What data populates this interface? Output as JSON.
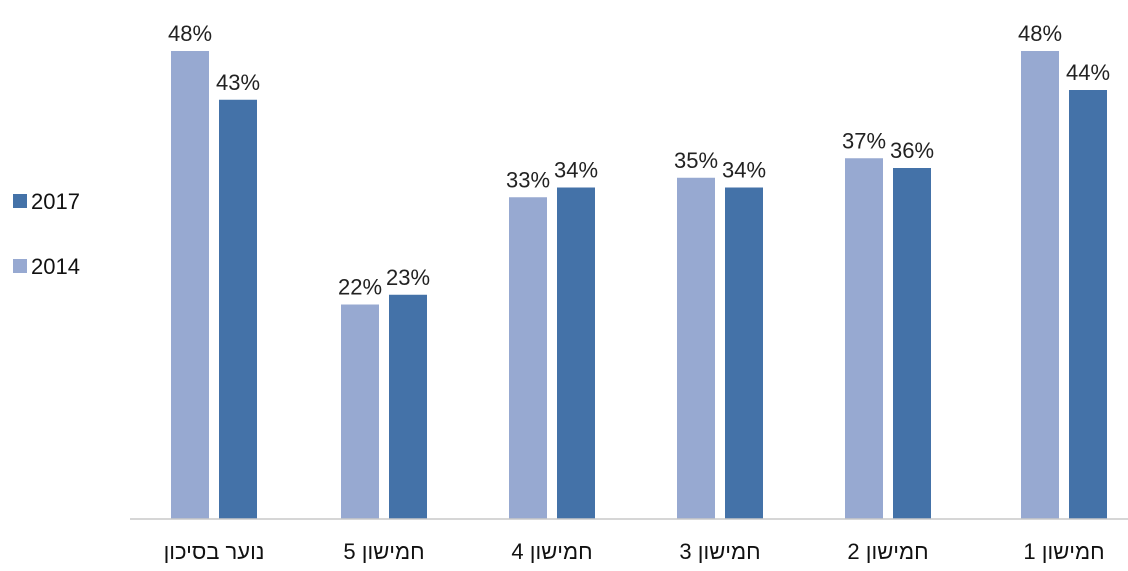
{
  "colors": {
    "series_2014": "#97a9d1",
    "series_2017": "#4472a8",
    "axis": "#c8c8c8",
    "text": "#111111"
  },
  "chart_data": {
    "type": "bar",
    "title": "",
    "xlabel": "",
    "ylabel": "",
    "ylim": [
      0,
      50
    ],
    "grid": false,
    "legend_position": "left",
    "categories": [
      "חמישון 1",
      "חמישון 2",
      "חמישון 3",
      "חמישון 4",
      "חמישון 5",
      "נוער בסיכון"
    ],
    "category_order": "right-to-left",
    "series": [
      {
        "name": "2014",
        "values": [
          48,
          37,
          35,
          33,
          22,
          48
        ],
        "labels": [
          "48%",
          "37%",
          "35%",
          "33%",
          "22%",
          "48%"
        ]
      },
      {
        "name": "2017",
        "values": [
          44,
          36,
          34,
          34,
          23,
          43
        ],
        "labels": [
          "44%",
          "36%",
          "34%",
          "34%",
          "23%",
          "43%"
        ]
      }
    ],
    "legend": [
      {
        "name": "2017"
      },
      {
        "name": "2014"
      }
    ]
  }
}
